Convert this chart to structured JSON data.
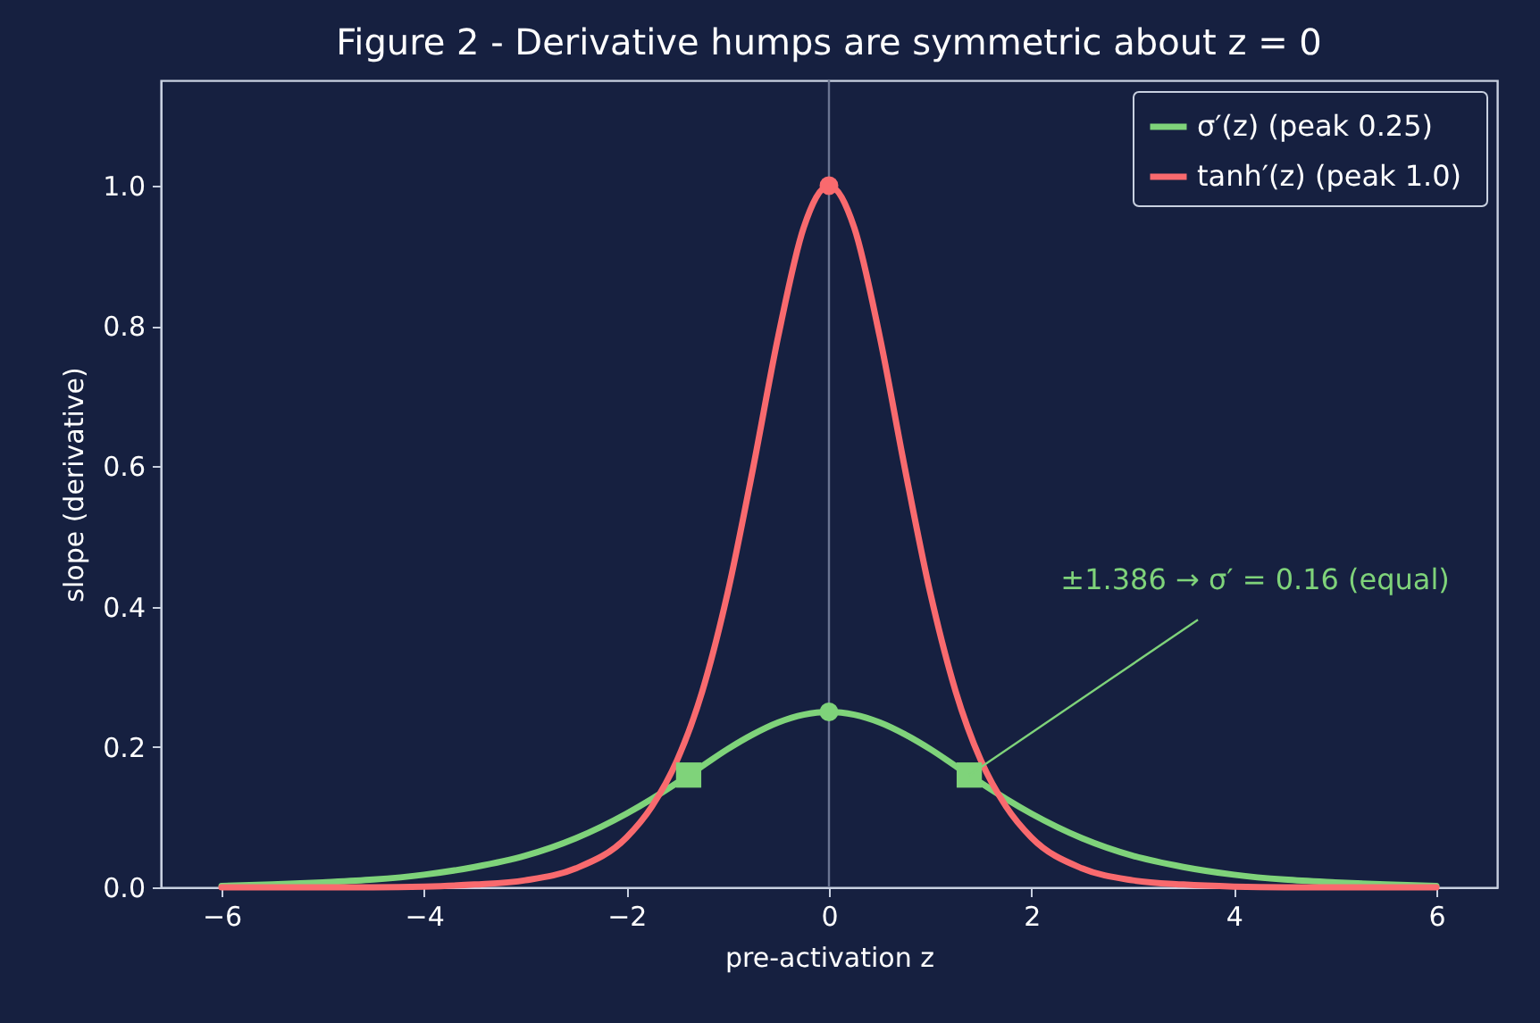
{
  "chart_data": {
    "type": "line",
    "title": "Figure 2 - Derivative humps are symmetric about z = 0",
    "xlabel": "pre-activation  z",
    "ylabel": "slope (derivative)",
    "xlim": [
      -6.6,
      6.6
    ],
    "xticks": [
      -6,
      -4,
      -2,
      0,
      2,
      4,
      6
    ],
    "ylim": [
      0,
      1.15
    ],
    "yticks": [
      {
        "value": 0,
        "label": "0.0"
      },
      0.2,
      0.4,
      0.6,
      0.8,
      {
        "value": 1,
        "label": "1.0"
      }
    ],
    "x": [
      -6,
      -5.5,
      -5,
      -4.5,
      -4,
      -3.5,
      -3,
      -2.5,
      -2,
      -1.75,
      -1.5,
      -1.25,
      -1,
      -0.75,
      -0.5,
      -0.25,
      0,
      0.25,
      0.5,
      0.75,
      1,
      1.25,
      1.5,
      1.75,
      2,
      2.5,
      3,
      3.5,
      4,
      4.5,
      5,
      5.5,
      6
    ],
    "series": [
      {
        "name": "σ′(z)  (peak 0.25)",
        "color": "#7fd37a",
        "values": [
          0.002,
          0.004,
          0.007,
          0.011,
          0.018,
          0.029,
          0.045,
          0.07,
          0.105,
          0.126,
          0.149,
          0.173,
          0.197,
          0.218,
          0.235,
          0.246,
          0.25,
          0.246,
          0.235,
          0.218,
          0.197,
          0.173,
          0.149,
          0.126,
          0.105,
          0.07,
          0.045,
          0.029,
          0.018,
          0.011,
          0.007,
          0.004,
          0.002
        ]
      },
      {
        "name": "tanh′(z)  (peak 1.0)",
        "color": "#f96a6e",
        "values": [
          0,
          0,
          0,
          0,
          0.001,
          0.004,
          0.01,
          0.027,
          0.071,
          0.115,
          0.181,
          0.28,
          0.42,
          0.597,
          0.786,
          0.94,
          1.0,
          0.94,
          0.786,
          0.597,
          0.42,
          0.28,
          0.181,
          0.115,
          0.071,
          0.027,
          0.01,
          0.004,
          0.001,
          0,
          0,
          0,
          0
        ]
      },
      {
        "type": "scatter",
        "marker": "circle",
        "color": "#7fd37a",
        "x": [
          0
        ],
        "values": [
          0.25
        ]
      },
      {
        "type": "scatter",
        "marker": "circle",
        "color": "#f96a6e",
        "x": [
          0
        ],
        "values": [
          1.0
        ]
      },
      {
        "type": "scatter",
        "marker": "square",
        "color": "#7fd37a",
        "x": [
          -1.386,
          1.386
        ],
        "values": [
          0.16,
          0.16
        ]
      }
    ],
    "ref_lines": [
      {
        "axis": "x",
        "value": 0,
        "color": "#6b7591"
      }
    ],
    "annotations": [
      {
        "text": "±1.386 → σ′ = 0.16 (equal)",
        "x": 1.386,
        "y": 0.16
      }
    ],
    "legend": "top right"
  }
}
